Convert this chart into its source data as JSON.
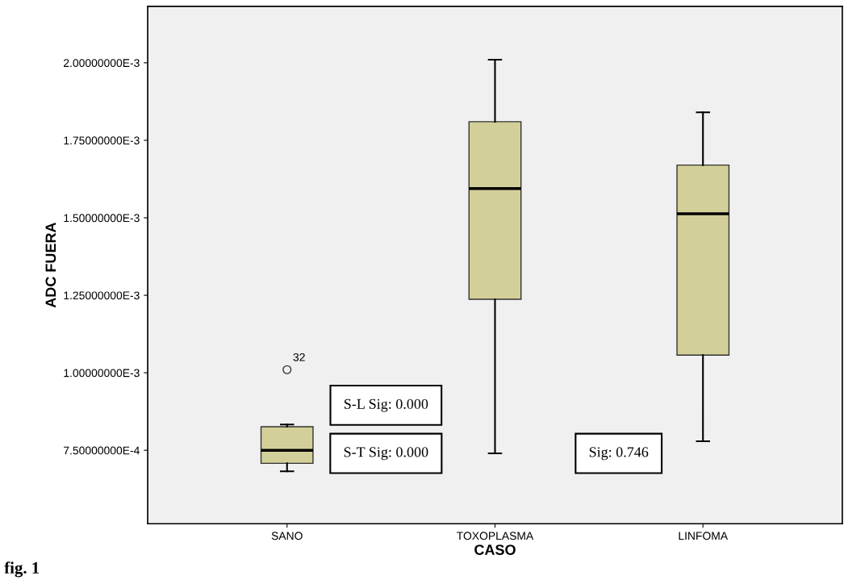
{
  "chart_data": {
    "type": "box",
    "xlabel": "CASO",
    "ylabel": "ADC FUERA",
    "categories": [
      "SANO",
      "TOXOPLASMA",
      "LINFOMA"
    ],
    "series": [
      {
        "color": "#d3cf98",
        "boxes": [
          {
            "low": 0.000682,
            "q1": 0.000708,
            "median": 0.00075,
            "q3": 0.000826,
            "high": 0.000833,
            "outliers": [
              0.00101
            ]
          },
          {
            "low": 0.00074,
            "q1": 0.001237,
            "median": 0.001594,
            "q3": 0.00181,
            "high": 0.00201
          },
          {
            "low": 0.000779,
            "q1": 0.001057,
            "median": 0.001513,
            "q3": 0.00167,
            "high": 0.00184
          }
        ]
      }
    ],
    "ylim": [
      0.000513,
      0.002182
    ],
    "yticks": [
      {
        "value": 0.00075,
        "label": "7.50000000E-4"
      },
      {
        "value": 0.001,
        "label": "1.00000000E-3"
      },
      {
        "value": 0.00125,
        "label": "1.25000000E-3"
      },
      {
        "value": 0.0015,
        "label": "1.50000000E-3"
      },
      {
        "value": 0.00175,
        "label": "1.75000000E-3"
      },
      {
        "value": 0.002,
        "label": "2.00000000E-3"
      }
    ],
    "grid": false,
    "annotations": [
      "S-L Sig: 0.000",
      "S-T Sig: 0.000",
      "Sig: 0.746",
      "32",
      "fig. 1"
    ]
  }
}
